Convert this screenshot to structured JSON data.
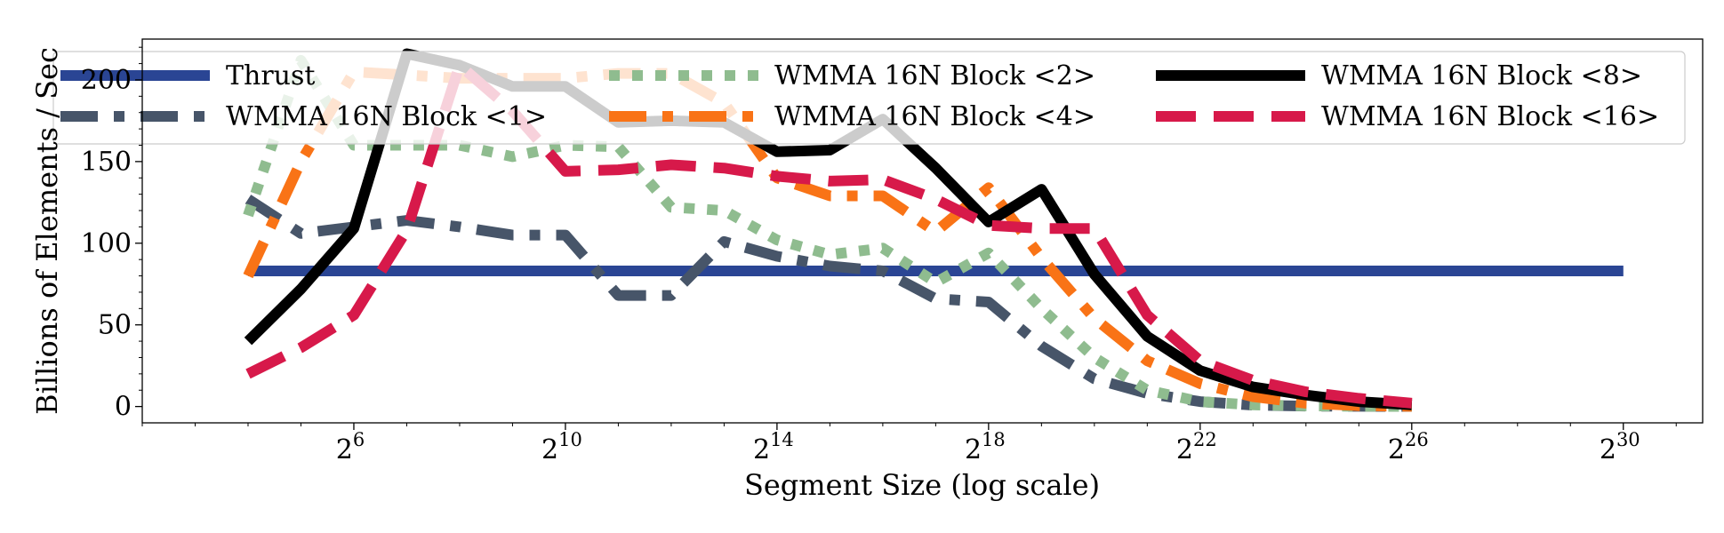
{
  "chart_data": {
    "type": "line",
    "xlabel": "Segment Size (log scale)",
    "ylabel": "Billions of Elements / Sec",
    "x_scale": "log2",
    "xlim_log2": [
      2.0,
      31.5
    ],
    "ylim": [
      -10,
      225
    ],
    "grid": false,
    "legend_placement": "top, 3 columns",
    "x_ticks": [
      {
        "base": "2",
        "exp": "6",
        "log2": 6
      },
      {
        "base": "2",
        "exp": "10",
        "log2": 10
      },
      {
        "base": "2",
        "exp": "14",
        "log2": 14
      },
      {
        "base": "2",
        "exp": "18",
        "log2": 18
      },
      {
        "base": "2",
        "exp": "22",
        "log2": 22
      },
      {
        "base": "2",
        "exp": "26",
        "log2": 26
      },
      {
        "base": "2",
        "exp": "30",
        "log2": 30
      }
    ],
    "y_ticks": [
      0,
      50,
      100,
      150,
      200
    ],
    "x_log2": [
      4,
      5,
      6,
      7,
      8,
      9,
      10,
      11,
      12,
      13,
      14,
      15,
      16,
      17,
      18,
      19,
      20,
      21,
      22,
      23,
      24,
      25,
      26
    ],
    "series": [
      {
        "name": "Thrust",
        "color": "#2a4594",
        "style": "solid",
        "x_log2": [
          4,
          30
        ],
        "values": [
          83,
          83
        ]
      },
      {
        "name": "WMMA 16N Block <1>",
        "color": "#475569",
        "style": "dashdot",
        "values": [
          127,
          106,
          110,
          114,
          110,
          105,
          105,
          68,
          68,
          101,
          92,
          86,
          83,
          66,
          64,
          37,
          17,
          8,
          3,
          0.8,
          0.3,
          0.1,
          0.05
        ]
      },
      {
        "name": "WMMA 16N Block <2>",
        "color": "#8fbc8f",
        "style": "dotted",
        "values": [
          117,
          212,
          160,
          160,
          160,
          153,
          160,
          159,
          122,
          120,
          102,
          93,
          97,
          76,
          94,
          60,
          30,
          10,
          3,
          1,
          0.4,
          0.1,
          0.05
        ]
      },
      {
        "name": "WMMA 16N Block <4>",
        "color": "#f97316",
        "style": "dashdot",
        "values": [
          80,
          150,
          205,
          203,
          201,
          201,
          201,
          204,
          204,
          186,
          140,
          129,
          129,
          107,
          134,
          91,
          54,
          28,
          14,
          6,
          2,
          0.5,
          0.1
        ]
      },
      {
        "name": "WMMA 16N Block <8>",
        "color": "#000000",
        "style": "solid",
        "values": [
          40,
          72,
          109,
          216,
          209,
          196,
          196,
          174,
          175,
          174,
          156,
          157,
          176,
          146,
          113,
          133,
          81,
          43,
          22,
          12,
          7,
          3,
          1
        ]
      },
      {
        "name": "WMMA 16N Block <16>",
        "color": "#d7194a",
        "style": "dashed",
        "values": [
          20,
          36,
          56,
          108,
          209,
          181,
          144,
          145,
          148,
          146,
          141,
          138,
          139,
          127,
          111,
          109,
          109,
          56,
          28,
          16,
          9,
          5,
          2
        ]
      }
    ]
  }
}
